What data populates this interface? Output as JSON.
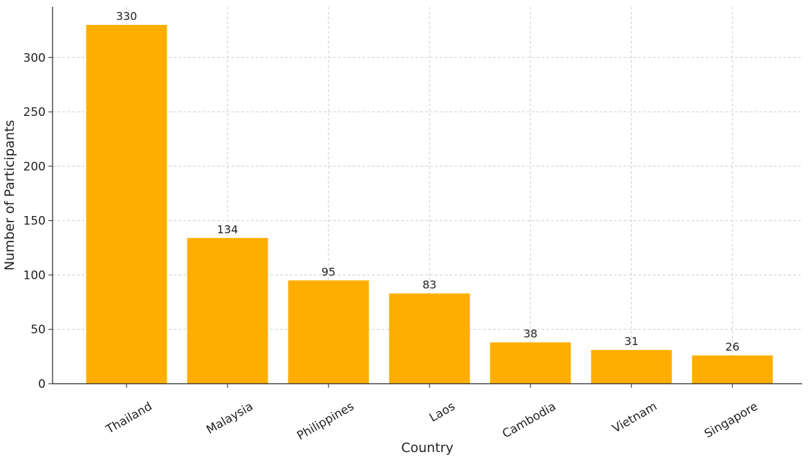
{
  "chart_data": {
    "type": "bar",
    "title": "",
    "xlabel": "Country",
    "ylabel": "Number of Participants",
    "categories": [
      "Thailand",
      "Malaysia",
      "Philippines",
      "Laos",
      "Cambodia",
      "Vietnam",
      "Singapore"
    ],
    "values": [
      330,
      134,
      95,
      83,
      38,
      31,
      26
    ],
    "ylim": [
      0,
      346.5
    ],
    "yticks": [
      0,
      50,
      100,
      150,
      200,
      250,
      300
    ],
    "grid": true,
    "bar_color": "#FFAE00",
    "data_labels": true
  }
}
